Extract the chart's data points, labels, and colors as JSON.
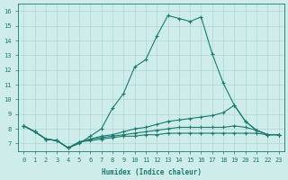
{
  "xlabel": "Humidex (Indice chaleur)",
  "background_color": "#ceecea",
  "grid_color": "#aed6d2",
  "line_color": "#1a7a6e",
  "xlim": [
    -0.5,
    23.5
  ],
  "ylim": [
    6.5,
    16.5
  ],
  "xticks": [
    0,
    1,
    2,
    3,
    4,
    5,
    6,
    7,
    8,
    9,
    10,
    11,
    12,
    13,
    14,
    15,
    16,
    17,
    18,
    19,
    20,
    21,
    22,
    23
  ],
  "yticks": [
    7,
    8,
    9,
    10,
    11,
    12,
    13,
    14,
    15,
    16
  ],
  "series": [
    {
      "x": [
        0,
        1,
        2,
        3,
        4,
        5,
        6,
        7,
        8,
        9,
        10,
        11,
        12,
        13,
        14,
        15,
        16,
        17,
        18,
        19,
        20,
        21,
        22,
        23
      ],
      "y": [
        8.2,
        7.8,
        7.3,
        7.2,
        6.7,
        7.0,
        7.5,
        8.0,
        9.4,
        10.4,
        12.2,
        12.7,
        14.3,
        15.7,
        15.5,
        15.3,
        15.6,
        13.1,
        11.1,
        9.6,
        8.5,
        7.9,
        7.6,
        7.6
      ]
    },
    {
      "x": [
        0,
        1,
        2,
        3,
        4,
        5,
        6,
        7,
        8,
        9,
        10,
        11,
        12,
        13,
        14,
        15,
        16,
        17,
        18,
        19,
        20,
        21,
        22,
        23
      ],
      "y": [
        8.2,
        7.8,
        7.3,
        7.2,
        6.7,
        7.1,
        7.3,
        7.5,
        7.6,
        7.8,
        8.0,
        8.1,
        8.3,
        8.5,
        8.6,
        8.7,
        8.8,
        8.9,
        9.1,
        9.6,
        8.5,
        7.9,
        7.6,
        7.6
      ]
    },
    {
      "x": [
        0,
        1,
        2,
        3,
        4,
        5,
        6,
        7,
        8,
        9,
        10,
        11,
        12,
        13,
        14,
        15,
        16,
        17,
        18,
        19,
        20,
        21,
        22,
        23
      ],
      "y": [
        8.2,
        7.8,
        7.3,
        7.2,
        6.7,
        7.1,
        7.3,
        7.4,
        7.5,
        7.6,
        7.7,
        7.8,
        7.9,
        8.0,
        8.1,
        8.1,
        8.1,
        8.1,
        8.1,
        8.2,
        8.1,
        7.9,
        7.6,
        7.6
      ]
    },
    {
      "x": [
        0,
        1,
        2,
        3,
        4,
        5,
        6,
        7,
        8,
        9,
        10,
        11,
        12,
        13,
        14,
        15,
        16,
        17,
        18,
        19,
        20,
        21,
        22,
        23
      ],
      "y": [
        8.2,
        7.8,
        7.3,
        7.2,
        6.7,
        7.1,
        7.2,
        7.3,
        7.4,
        7.5,
        7.5,
        7.6,
        7.6,
        7.7,
        7.7,
        7.7,
        7.7,
        7.7,
        7.7,
        7.7,
        7.7,
        7.7,
        7.6,
        7.6
      ]
    }
  ],
  "marker": "+",
  "markersize": 3,
  "linewidth": 0.8
}
